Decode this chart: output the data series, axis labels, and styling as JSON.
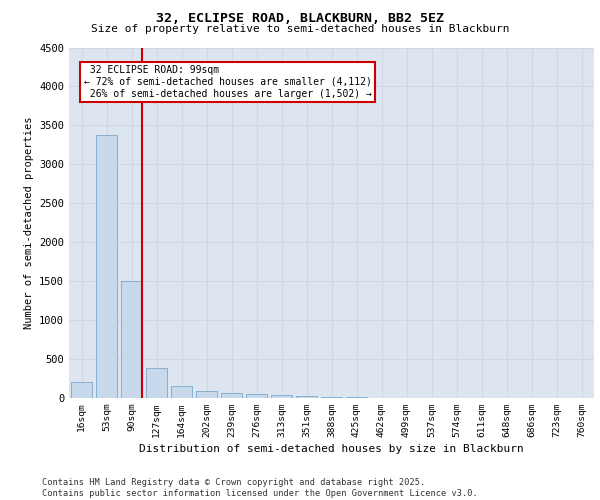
{
  "title_line1": "32, ECLIPSE ROAD, BLACKBURN, BB2 5EZ",
  "title_line2": "Size of property relative to semi-detached houses in Blackburn",
  "xlabel": "Distribution of semi-detached houses by size in Blackburn",
  "ylabel": "Number of semi-detached properties",
  "footer": "Contains HM Land Registry data © Crown copyright and database right 2025.\nContains public sector information licensed under the Open Government Licence v3.0.",
  "bin_labels": [
    "16sqm",
    "53sqm",
    "90sqm",
    "127sqm",
    "164sqm",
    "202sqm",
    "239sqm",
    "276sqm",
    "313sqm",
    "351sqm",
    "388sqm",
    "425sqm",
    "462sqm",
    "499sqm",
    "537sqm",
    "574sqm",
    "611sqm",
    "648sqm",
    "686sqm",
    "723sqm",
    "760sqm"
  ],
  "bin_values": [
    200,
    3380,
    1500,
    380,
    150,
    80,
    60,
    40,
    30,
    25,
    5,
    5,
    0,
    0,
    0,
    0,
    0,
    0,
    0,
    0,
    0
  ],
  "bar_color": "#c8d9eb",
  "bar_edge_color": "#7aa8cc",
  "property_label": "32 ECLIPSE ROAD: 99sqm",
  "pct_smaller": 72,
  "pct_larger": 26,
  "n_smaller": 4112,
  "n_larger": 1502,
  "vline_color": "#cc0000",
  "annotation_box_color": "#cc0000",
  "ylim": [
    0,
    4500
  ],
  "yticks": [
    0,
    500,
    1000,
    1500,
    2000,
    2500,
    3000,
    3500,
    4000,
    4500
  ],
  "grid_color": "#d0d8e8",
  "bg_color": "#dde6f0"
}
